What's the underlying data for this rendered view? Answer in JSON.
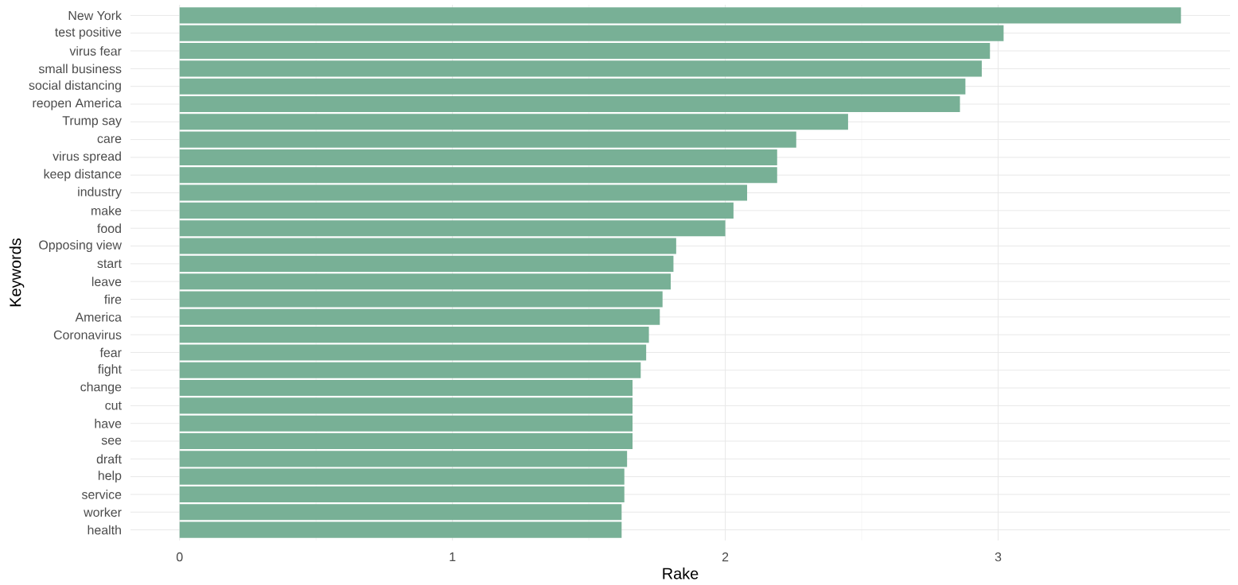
{
  "chart_data": {
    "type": "bar",
    "orientation": "horizontal",
    "xlabel": "Rake",
    "ylabel": "Keywords",
    "categories": [
      "New York",
      "test positive",
      "virus fear",
      "small business",
      "social distancing",
      "reopen America",
      "Trump say",
      "care",
      "virus spread",
      "keep distance",
      "industry",
      "make",
      "food",
      "Opposing view",
      "start",
      "leave",
      "fire",
      "America",
      "Coronavirus",
      "fear",
      "fight",
      "change",
      "cut",
      "have",
      "see",
      "draft",
      "help",
      "service",
      "worker",
      "health"
    ],
    "values": [
      3.67,
      3.02,
      2.97,
      2.94,
      2.88,
      2.86,
      2.45,
      2.26,
      2.19,
      2.19,
      2.08,
      2.03,
      2.0,
      1.82,
      1.81,
      1.8,
      1.77,
      1.76,
      1.72,
      1.71,
      1.69,
      1.66,
      1.66,
      1.66,
      1.66,
      1.64,
      1.63,
      1.63,
      1.62,
      1.62
    ],
    "color": "#78b096",
    "xlim": [
      -0.18,
      3.85
    ],
    "xticks": [
      0,
      1,
      2,
      3
    ],
    "grid": true
  }
}
